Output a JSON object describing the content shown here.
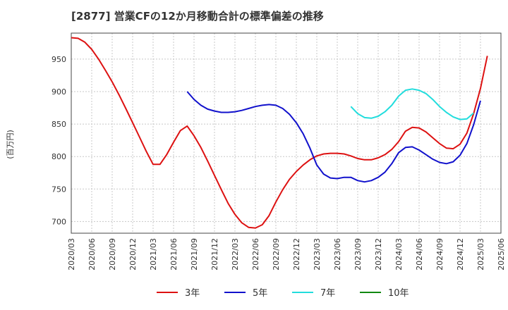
{
  "chart_data": {
    "type": "line",
    "title": "[2877]  営業CFの12か月移動合計の標準偏差の推移",
    "ylabel": "(百万円)",
    "xlabel": "",
    "ylim": [
      682,
      990
    ],
    "yticks": [
      700,
      750,
      800,
      850,
      900,
      950
    ],
    "x_ticks": [
      "2020/03",
      "2020/06",
      "2020/09",
      "2020/12",
      "2021/03",
      "2021/06",
      "2021/09",
      "2021/12",
      "2022/03",
      "2022/06",
      "2022/09",
      "2022/12",
      "2023/03",
      "2023/06",
      "2023/09",
      "2023/12",
      "2024/03",
      "2024/06",
      "2024/09",
      "2024/12",
      "2025/03",
      "2025/06"
    ],
    "grid": true,
    "legend_position": "bottom",
    "series": [
      {
        "name": "3年",
        "color": "#dd1111",
        "start": "2020/03",
        "values": [
          983,
          982,
          976,
          965,
          950,
          933,
          915,
          895,
          874,
          852,
          830,
          808,
          788,
          788,
          803,
          822,
          840,
          847,
          832,
          814,
          793,
          771,
          749,
          728,
          711,
          698,
          691,
          690,
          695,
          709,
          730,
          749,
          765,
          777,
          787,
          795,
          801,
          804,
          805,
          805,
          804,
          801,
          797,
          795,
          795,
          798,
          803,
          811,
          823,
          839,
          845,
          844,
          838,
          829,
          820,
          813,
          812,
          819,
          836,
          866,
          905,
          955
        ]
      },
      {
        "name": "5年",
        "color": "#1111cc",
        "start": "2021/08",
        "values": [
          900,
          888,
          879,
          873,
          870,
          868,
          868,
          869,
          871,
          874,
          877,
          879,
          880,
          879,
          874,
          865,
          852,
          835,
          813,
          787,
          773,
          767,
          766,
          768,
          768,
          763,
          761,
          763,
          768,
          776,
          789,
          806,
          814,
          815,
          810,
          803,
          796,
          791,
          789,
          792,
          802,
          820,
          849,
          886
        ]
      },
      {
        "name": "7年",
        "color": "#22dddd",
        "start": "2023/08",
        "values": [
          877,
          866,
          860,
          859,
          862,
          869,
          879,
          893,
          902,
          904,
          902,
          897,
          888,
          877,
          868,
          861,
          857,
          858,
          867
        ]
      },
      {
        "name": "10年",
        "color": "#118811",
        "start": "2025/03",
        "values": []
      }
    ]
  }
}
